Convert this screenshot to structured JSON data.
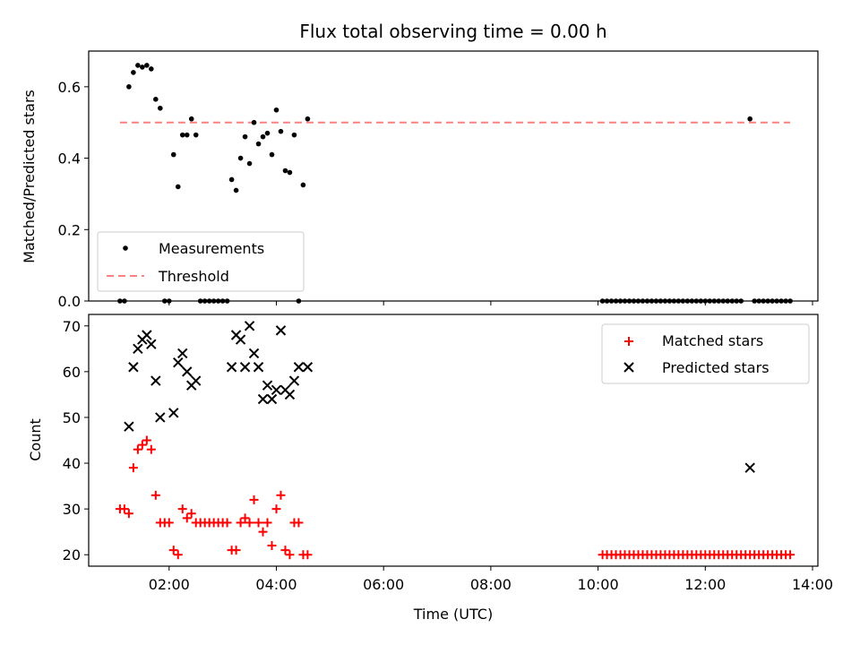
{
  "chart_data": [
    {
      "type": "scatter",
      "title": "Flux total observing time = 0.00 h",
      "ylabel": "Matched/Predicted stars",
      "xlabel": "",
      "ylim": [
        0,
        0.7
      ],
      "yticks": [
        "0.0",
        "0.2",
        "0.4",
        "0.6"
      ],
      "xlim_hours": [
        0.5,
        14.1
      ],
      "threshold": 0.5,
      "legend": {
        "placement": "lower-left",
        "entries": [
          "Measurements",
          "Threshold"
        ]
      },
      "colors": {
        "measurements": "#000000",
        "threshold": "#ff8080"
      },
      "series": [
        {
          "name": "Measurements",
          "x": [
            "01:05",
            "01:10",
            "01:15",
            "01:20",
            "01:25",
            "01:30",
            "01:35",
            "01:40",
            "01:45",
            "01:50",
            "01:55",
            "02:00",
            "02:05",
            "02:10",
            "02:15",
            "02:20",
            "02:25",
            "02:30",
            "02:35",
            "02:40",
            "02:45",
            "02:50",
            "02:55",
            "03:00",
            "03:05",
            "03:10",
            "03:15",
            "03:20",
            "03:25",
            "03:30",
            "03:35",
            "03:40",
            "03:45",
            "03:50",
            "03:55",
            "04:00",
            "04:05",
            "04:10",
            "04:15",
            "04:20",
            "04:25",
            "04:30",
            "04:35",
            "12:50"
          ],
          "y": [
            0.0,
            0.0,
            0.6,
            0.64,
            0.66,
            0.655,
            0.66,
            0.65,
            0.565,
            0.54,
            0.0,
            0.0,
            0.41,
            0.32,
            0.465,
            0.465,
            0.51,
            0.465,
            0.0,
            0.0,
            0.0,
            0.0,
            0.0,
            0.0,
            0.0,
            0.34,
            0.31,
            0.4,
            0.46,
            0.385,
            0.5,
            0.44,
            0.46,
            0.47,
            0.41,
            0.535,
            0.475,
            0.365,
            0.36,
            0.465,
            0.0,
            0.325,
            0.51,
            0.51
          ]
        },
        {
          "name": "Measurements (zero values, late session)",
          "x": [
            "10:05",
            "10:10",
            "10:15",
            "10:20",
            "10:25",
            "10:30",
            "10:35",
            "10:40",
            "10:45",
            "10:50",
            "10:55",
            "11:00",
            "11:05",
            "11:10",
            "11:15",
            "11:20",
            "11:25",
            "11:30",
            "11:35",
            "11:40",
            "11:45",
            "11:50",
            "11:55",
            "12:00",
            "12:05",
            "12:10",
            "12:15",
            "12:20",
            "12:25",
            "12:30",
            "12:35",
            "12:40",
            "12:55",
            "13:00",
            "13:05",
            "13:10",
            "13:15",
            "13:20",
            "13:25",
            "13:30",
            "13:35"
          ],
          "y": 0.0
        },
        {
          "name": "Threshold",
          "x": [
            "01:05",
            "13:35"
          ],
          "y": [
            0.5,
            0.5
          ]
        }
      ]
    },
    {
      "type": "scatter",
      "title": "",
      "xlabel": "Time (UTC)",
      "ylabel": "Count",
      "ylim": [
        17.5,
        72.5
      ],
      "yticks": [
        "20",
        "30",
        "40",
        "50",
        "60",
        "70"
      ],
      "xticks": [
        "02:00",
        "04:00",
        "06:00",
        "08:00",
        "10:00",
        "12:00",
        "14:00"
      ],
      "xlim_hours": [
        0.5,
        14.1
      ],
      "legend": {
        "placement": "top-right",
        "entries": [
          "Matched stars",
          "Predicted stars"
        ]
      },
      "colors": {
        "matched": "#ff0000",
        "predicted": "#000000"
      },
      "series": [
        {
          "name": "Matched stars",
          "x": [
            "01:05",
            "01:10",
            "01:15",
            "01:20",
            "01:25",
            "01:30",
            "01:35",
            "01:40",
            "01:45",
            "01:50",
            "01:55",
            "02:00",
            "02:05",
            "02:10",
            "02:15",
            "02:20",
            "02:25",
            "02:30",
            "02:35",
            "02:40",
            "02:45",
            "02:50",
            "02:55",
            "03:00",
            "03:05",
            "03:10",
            "03:15",
            "03:20",
            "03:25",
            "03:30",
            "03:35",
            "03:40",
            "03:45",
            "03:50",
            "03:55",
            "04:00",
            "04:05",
            "04:10",
            "04:15",
            "04:20",
            "04:25",
            "04:30",
            "04:35"
          ],
          "y": [
            30,
            30,
            29,
            39,
            43,
            44,
            45,
            43,
            33,
            27,
            27,
            27,
            21,
            20,
            30,
            28,
            29,
            27,
            27,
            27,
            27,
            27,
            27,
            27,
            27,
            21,
            21,
            27,
            28,
            27,
            32,
            27,
            25,
            27,
            22,
            30,
            33,
            21,
            20,
            27,
            27,
            20,
            20
          ]
        },
        {
          "name": "Matched stars (late session)",
          "x": [
            "10:05",
            "10:10",
            "10:15",
            "10:20",
            "10:25",
            "10:30",
            "10:35",
            "10:40",
            "10:45",
            "10:50",
            "10:55",
            "11:00",
            "11:05",
            "11:10",
            "11:15",
            "11:20",
            "11:25",
            "11:30",
            "11:35",
            "11:40",
            "11:45",
            "11:50",
            "11:55",
            "12:00",
            "12:05",
            "12:10",
            "12:15",
            "12:20",
            "12:25",
            "12:30",
            "12:35",
            "12:40",
            "12:45",
            "12:50",
            "12:55",
            "13:00",
            "13:05",
            "13:10",
            "13:15",
            "13:20",
            "13:25",
            "13:30",
            "13:35"
          ],
          "y": 20
        },
        {
          "name": "Predicted stars",
          "x": [
            "01:15",
            "01:20",
            "01:25",
            "01:30",
            "01:35",
            "01:40",
            "01:45",
            "01:50",
            "02:05",
            "02:10",
            "02:15",
            "02:20",
            "02:25",
            "02:30",
            "03:10",
            "03:15",
            "03:20",
            "03:25",
            "03:30",
            "03:35",
            "03:40",
            "03:45",
            "03:50",
            "03:55",
            "04:00",
            "04:05",
            "04:10",
            "04:15",
            "04:20",
            "04:25",
            "04:35",
            "12:50"
          ],
          "y": [
            48,
            61,
            65,
            67,
            68,
            66,
            58,
            50,
            51,
            62,
            64,
            60,
            57,
            58,
            61,
            68,
            67,
            61,
            70,
            64,
            61,
            54,
            57,
            54,
            56,
            69,
            56,
            55,
            58,
            61,
            61,
            39
          ]
        }
      ]
    }
  ]
}
